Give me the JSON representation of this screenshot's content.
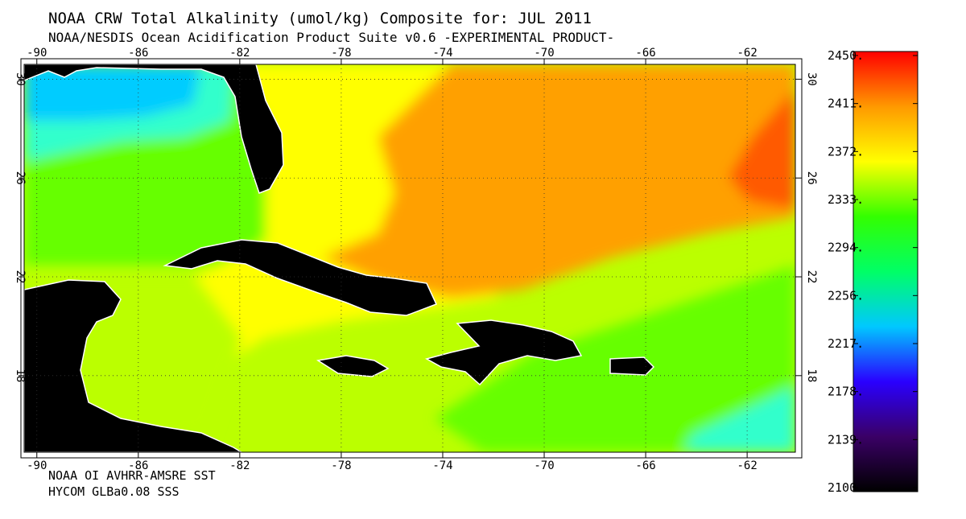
{
  "header": {
    "title": "NOAA CRW Total Alkalinity (umol/kg) Composite for: JUL 2011",
    "subtitle": "NOAA/NESDIS Ocean Acidification Product Suite  v0.6 -EXPERIMENTAL PRODUCT-"
  },
  "footer": {
    "line1": "NOAA OI AVHRR-AMSRE SST",
    "line2": "HYCOM GLBa0.08 SSS"
  },
  "map": {
    "lon_ticks": [
      "-90",
      "-86",
      "-82",
      "-78",
      "-74",
      "-70",
      "-66",
      "-62"
    ],
    "lat_ticks": [
      "30",
      "26",
      "22",
      "18"
    ],
    "lon_range": [
      -90.5,
      -60.1
    ],
    "lat_range": [
      14.9,
      30.6
    ]
  },
  "colorbar": {
    "labels": [
      "2450.",
      "2411.",
      "2372.",
      "2333.",
      "2294.",
      "2256.",
      "2217.",
      "2178.",
      "2139.",
      "2100."
    ],
    "range": [
      2100,
      2450
    ],
    "stops": [
      "#000000",
      "#3a0066",
      "#2a00ff",
      "#00c8ff",
      "#00ff66",
      "#33ff00",
      "#ffff00",
      "#ff9900",
      "#ff0000"
    ]
  },
  "colors": {
    "land": "#000000",
    "gulf_low": "#00ccff",
    "gulf_mid": "#33ffcc",
    "green": "#66ff00",
    "yellowgreen": "#bbff00",
    "yellow": "#ffff00",
    "orange": "#ffa000",
    "deep_orange": "#ff5a00"
  }
}
